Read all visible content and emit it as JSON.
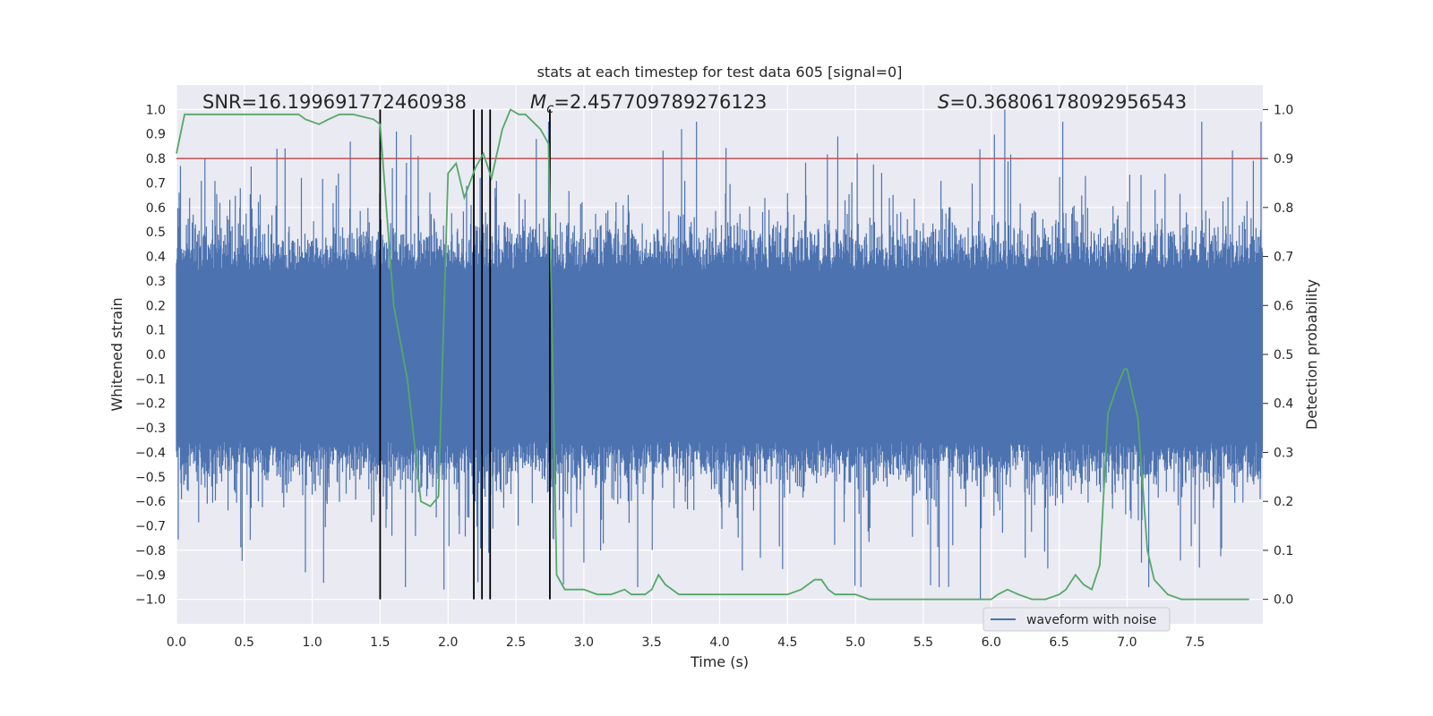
{
  "chart_data": {
    "type": "line",
    "title": "stats at each timestep for test data 605 [signal=0]",
    "xlabel": "Time (s)",
    "ylabel": "Whitened strain",
    "ylabel_right": "Detection probability",
    "xlim": [
      0.0,
      8.0
    ],
    "ylim": [
      -1.1,
      1.1
    ],
    "ylim_right": [
      -0.05,
      1.05
    ],
    "x_ticks": [
      "0.0",
      "0.5",
      "1.0",
      "1.5",
      "2.0",
      "2.5",
      "3.0",
      "3.5",
      "4.0",
      "4.5",
      "5.0",
      "5.5",
      "6.0",
      "6.5",
      "7.0",
      "7.5"
    ],
    "y_ticks": [
      "1.0",
      "0.9",
      "0.8",
      "0.7",
      "0.6",
      "0.5",
      "0.4",
      "0.3",
      "0.2",
      "0.1",
      "0.0",
      "−0.1",
      "−0.2",
      "−0.3",
      "−0.4",
      "−0.5",
      "−0.6",
      "−0.7",
      "−0.8",
      "−0.9",
      "−1.0"
    ],
    "y_ticks_right": [
      "1.0",
      "0.9",
      "0.8",
      "0.7",
      "0.6",
      "0.5",
      "0.4",
      "0.3",
      "0.2",
      "0.1",
      "0.0"
    ],
    "grid": true,
    "annotations": {
      "snr": "SNR=16.199691772460938",
      "mc": "=2.457709789276123",
      "mc_symbol": "M",
      "mc_sub": "c",
      "s": "=0.36806178092956543",
      "s_symbol": "S"
    },
    "threshold": {
      "value": 0.9,
      "axis": "right",
      "color": "#c44e52"
    },
    "vertical_lines": [
      1.5,
      2.19,
      2.25,
      2.31,
      2.75
    ],
    "series": [
      {
        "name": "waveform with noise",
        "color": "#4c72b0",
        "axis": "left",
        "kind": "noise-envelope",
        "typical_amplitude": 0.45,
        "peak_max": 1.0,
        "peak_min": -1.0,
        "x_range": [
          0.0,
          8.0
        ]
      },
      {
        "name": "detection probability",
        "color": "#55a868",
        "axis": "right",
        "x": [
          0.0,
          0.06,
          0.15,
          0.3,
          0.5,
          0.7,
          0.9,
          0.95,
          1.05,
          1.12,
          1.2,
          1.3,
          1.45,
          1.5,
          1.6,
          1.7,
          1.8,
          1.87,
          1.93,
          2.0,
          2.06,
          2.12,
          2.2,
          2.26,
          2.32,
          2.4,
          2.46,
          2.52,
          2.57,
          2.68,
          2.74,
          2.8,
          2.86,
          2.92,
          3.0,
          3.1,
          3.2,
          3.3,
          3.35,
          3.45,
          3.5,
          3.55,
          3.6,
          3.7,
          3.8,
          3.9,
          4.0,
          4.05,
          4.12,
          4.2,
          4.3,
          4.4,
          4.5,
          4.6,
          4.7,
          4.75,
          4.8,
          4.85,
          4.9,
          5.0,
          5.1,
          5.2,
          5.3,
          5.4,
          5.5,
          5.6,
          5.7,
          5.8,
          5.9,
          6.0,
          6.05,
          6.12,
          6.2,
          6.3,
          6.4,
          6.5,
          6.55,
          6.62,
          6.68,
          6.74,
          6.8,
          6.86,
          6.92,
          6.98,
          7.0,
          7.08,
          7.15,
          7.2,
          7.3,
          7.4,
          7.5,
          7.6,
          7.7,
          7.8,
          7.9
        ],
        "values": [
          0.91,
          0.99,
          0.99,
          0.99,
          0.99,
          0.99,
          0.99,
          0.98,
          0.97,
          0.98,
          0.99,
          0.99,
          0.98,
          0.97,
          0.6,
          0.45,
          0.2,
          0.19,
          0.21,
          0.87,
          0.89,
          0.82,
          0.88,
          0.91,
          0.86,
          0.96,
          1.0,
          0.99,
          0.99,
          0.96,
          0.93,
          0.05,
          0.02,
          0.02,
          0.02,
          0.01,
          0.01,
          0.02,
          0.01,
          0.01,
          0.02,
          0.05,
          0.03,
          0.01,
          0.01,
          0.01,
          0.01,
          0.01,
          0.01,
          0.01,
          0.01,
          0.01,
          0.01,
          0.02,
          0.04,
          0.04,
          0.02,
          0.01,
          0.01,
          0.01,
          0.0,
          0.0,
          0.0,
          0.0,
          0.0,
          0.0,
          0.0,
          0.0,
          0.0,
          0.0,
          0.01,
          0.02,
          0.01,
          0.0,
          0.0,
          0.01,
          0.02,
          0.05,
          0.03,
          0.02,
          0.07,
          0.38,
          0.43,
          0.47,
          0.47,
          0.37,
          0.1,
          0.04,
          0.01,
          0.0,
          0.0,
          0.0,
          0.0,
          0.0,
          0.0
        ]
      }
    ],
    "legend": {
      "entries": [
        "waveform with noise"
      ],
      "position": "lower-right"
    }
  }
}
